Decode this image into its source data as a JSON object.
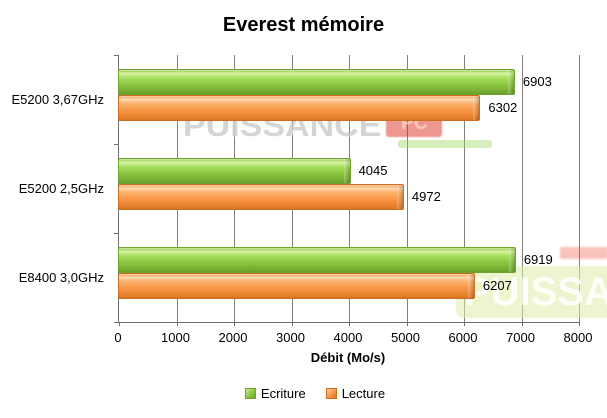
{
  "title": "Everest mémoire",
  "chart_data": {
    "type": "bar",
    "orientation": "horizontal",
    "title": "Everest mémoire",
    "categories": [
      "E5200 3,67GHz",
      "E5200 2,5GHz",
      "E8400 3,0GHz"
    ],
    "series": [
      {
        "name": "Ecriture",
        "color": "#8CC63F",
        "values": [
          6903,
          4045,
          6919
        ]
      },
      {
        "name": "Lecture",
        "color": "#F79646",
        "values": [
          6302,
          4972,
          6207
        ]
      }
    ],
    "xlabel": "Débit (Mo/s)",
    "xlim": [
      0,
      8000
    ],
    "x_ticks": [
      0,
      1000,
      2000,
      3000,
      4000,
      5000,
      6000,
      7000,
      8000
    ],
    "grid": true,
    "value_labels": true,
    "legend_position": "bottom"
  },
  "colors": {
    "ecriture": "#8CC63F",
    "lecture": "#F79646",
    "gridline": "#808080",
    "axis": "#6F6F6F",
    "text": "#000000",
    "background": "#FFFFFF"
  },
  "watermark": {
    "text": "PUISSANCE",
    "badge": "PC"
  }
}
